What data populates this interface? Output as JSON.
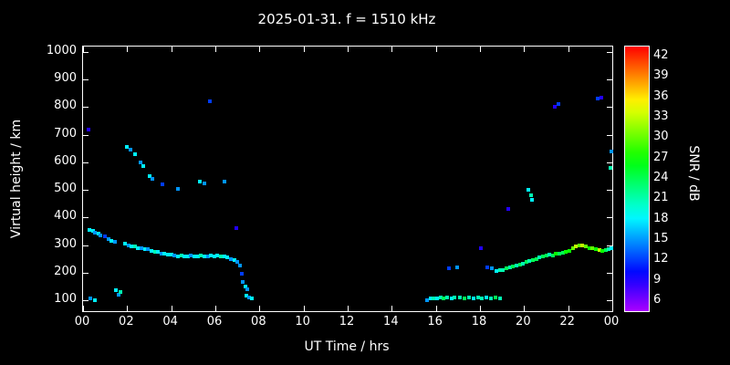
{
  "colors": {
    "background": "#000000",
    "foreground": "#ffffff"
  },
  "chart_data": {
    "type": "scatter",
    "title": "2025-01-31. f = 1510 kHz",
    "xlabel": "UT Time / hrs",
    "ylabel": "Virtual height / km",
    "colorbar_label": "SNR / dB",
    "xlim": [
      0,
      24
    ],
    "ylim": [
      60,
      1020
    ],
    "x_tick_labels": [
      "00",
      "02",
      "04",
      "06",
      "08",
      "10",
      "12",
      "14",
      "16",
      "18",
      "20",
      "22",
      "00"
    ],
    "x_tick_values": [
      0,
      2,
      4,
      6,
      8,
      10,
      12,
      14,
      16,
      18,
      20,
      22,
      24
    ],
    "y_tick_values": [
      100,
      200,
      300,
      400,
      500,
      600,
      700,
      800,
      900,
      1000
    ],
    "colorbar_tick_values": [
      42,
      39,
      36,
      33,
      30,
      27,
      24,
      21,
      18,
      15,
      12,
      9,
      6
    ],
    "colorbar_range": [
      4.5,
      43.5
    ],
    "grid": false,
    "legend": "colorbar-right",
    "points_format": "[ut_hours, virtual_height_km, snr_db]",
    "points": [
      [
        0.25,
        720,
        9
      ],
      [
        0.3,
        355,
        18
      ],
      [
        0.45,
        350,
        18
      ],
      [
        0.55,
        345,
        15
      ],
      [
        0.7,
        340,
        18
      ],
      [
        0.8,
        335,
        15
      ],
      [
        0.35,
        105,
        15
      ],
      [
        0.55,
        100,
        18
      ],
      [
        1.0,
        330,
        12
      ],
      [
        1.15,
        320,
        15
      ],
      [
        1.3,
        315,
        18
      ],
      [
        1.45,
        310,
        15
      ],
      [
        1.5,
        135,
        18
      ],
      [
        1.6,
        120,
        15
      ],
      [
        1.7,
        130,
        21
      ],
      [
        1.9,
        305,
        18
      ],
      [
        2.05,
        300,
        15
      ],
      [
        2.2,
        295,
        18
      ],
      [
        2.35,
        295,
        21
      ],
      [
        2.5,
        290,
        18
      ],
      [
        2.0,
        655,
        18
      ],
      [
        2.15,
        645,
        15
      ],
      [
        2.35,
        630,
        18
      ],
      [
        2.6,
        600,
        15
      ],
      [
        2.75,
        585,
        18
      ],
      [
        2.65,
        290,
        15
      ],
      [
        2.8,
        285,
        18
      ],
      [
        2.95,
        285,
        15
      ],
      [
        3.0,
        550,
        18
      ],
      [
        3.15,
        540,
        15
      ],
      [
        3.1,
        280,
        18
      ],
      [
        3.25,
        275,
        21
      ],
      [
        3.4,
        275,
        18
      ],
      [
        3.55,
        270,
        15
      ],
      [
        3.7,
        268,
        18
      ],
      [
        3.85,
        265,
        18
      ],
      [
        3.6,
        520,
        12
      ],
      [
        4.0,
        265,
        18
      ],
      [
        4.15,
        262,
        15
      ],
      [
        4.3,
        260,
        18
      ],
      [
        4.45,
        262,
        21
      ],
      [
        4.6,
        258,
        18
      ],
      [
        4.75,
        260,
        18
      ],
      [
        4.9,
        262,
        15
      ],
      [
        4.3,
        505,
        15
      ],
      [
        5.05,
        260,
        18
      ],
      [
        5.2,
        258,
        18
      ],
      [
        5.35,
        262,
        21
      ],
      [
        5.5,
        260,
        18
      ],
      [
        5.65,
        258,
        15
      ],
      [
        5.8,
        262,
        18
      ],
      [
        5.95,
        260,
        18
      ],
      [
        5.3,
        530,
        18
      ],
      [
        5.5,
        525,
        15
      ],
      [
        5.75,
        820,
        12
      ],
      [
        6.1,
        262,
        18
      ],
      [
        6.25,
        260,
        21
      ],
      [
        6.4,
        258,
        18
      ],
      [
        6.55,
        255,
        18
      ],
      [
        6.4,
        530,
        15
      ],
      [
        6.7,
        250,
        15
      ],
      [
        6.85,
        245,
        18
      ],
      [
        7.0,
        240,
        15
      ],
      [
        6.95,
        360,
        9
      ],
      [
        7.1,
        225,
        15
      ],
      [
        7.2,
        195,
        12
      ],
      [
        7.25,
        165,
        15
      ],
      [
        7.35,
        150,
        18
      ],
      [
        7.45,
        140,
        15
      ],
      [
        7.4,
        115,
        18
      ],
      [
        7.55,
        110,
        15
      ],
      [
        7.65,
        108,
        18
      ],
      [
        15.6,
        100,
        15
      ],
      [
        15.75,
        105,
        18
      ],
      [
        15.9,
        108,
        21
      ],
      [
        16.05,
        105,
        18
      ],
      [
        16.2,
        110,
        21
      ],
      [
        16.35,
        108,
        24
      ],
      [
        16.5,
        110,
        21
      ],
      [
        16.7,
        108,
        18
      ],
      [
        16.85,
        110,
        21
      ],
      [
        16.6,
        215,
        12
      ],
      [
        16.95,
        218,
        15
      ],
      [
        17.1,
        110,
        21
      ],
      [
        17.3,
        108,
        24
      ],
      [
        17.5,
        110,
        21
      ],
      [
        17.7,
        108,
        18
      ],
      [
        17.9,
        110,
        21
      ],
      [
        18.1,
        108,
        21
      ],
      [
        18.3,
        110,
        18
      ],
      [
        18.5,
        108,
        21
      ],
      [
        18.7,
        110,
        24
      ],
      [
        18.9,
        108,
        21
      ],
      [
        18.05,
        290,
        9
      ],
      [
        18.35,
        220,
        12
      ],
      [
        18.55,
        215,
        15
      ],
      [
        18.75,
        205,
        18
      ],
      [
        18.9,
        208,
        21
      ],
      [
        19.05,
        210,
        21
      ],
      [
        19.2,
        215,
        24
      ],
      [
        19.35,
        218,
        21
      ],
      [
        19.5,
        222,
        24
      ],
      [
        19.65,
        225,
        21
      ],
      [
        19.8,
        230,
        24
      ],
      [
        19.95,
        232,
        21
      ],
      [
        19.3,
        430,
        9
      ],
      [
        20.1,
        238,
        24
      ],
      [
        20.25,
        242,
        21
      ],
      [
        20.4,
        246,
        24
      ],
      [
        20.2,
        500,
        18
      ],
      [
        20.3,
        480,
        21
      ],
      [
        20.35,
        465,
        18
      ],
      [
        20.55,
        250,
        24
      ],
      [
        20.7,
        255,
        21
      ],
      [
        20.85,
        258,
        24
      ],
      [
        21.0,
        262,
        24
      ],
      [
        21.15,
        266,
        21
      ],
      [
        21.3,
        263,
        24
      ],
      [
        21.45,
        268,
        27
      ],
      [
        21.6,
        270,
        24
      ],
      [
        21.75,
        272,
        24
      ],
      [
        21.9,
        275,
        27
      ],
      [
        21.4,
        800,
        9
      ],
      [
        21.55,
        810,
        12
      ],
      [
        22.05,
        280,
        27
      ],
      [
        22.2,
        288,
        30
      ],
      [
        22.35,
        295,
        33
      ],
      [
        22.5,
        300,
        30
      ],
      [
        22.65,
        298,
        33
      ],
      [
        22.8,
        294,
        30
      ],
      [
        22.95,
        290,
        27
      ],
      [
        23.1,
        288,
        30
      ],
      [
        23.25,
        285,
        27
      ],
      [
        23.35,
        830,
        12
      ],
      [
        23.5,
        835,
        9
      ],
      [
        23.4,
        282,
        33
      ],
      [
        23.55,
        280,
        27
      ],
      [
        23.7,
        282,
        24
      ],
      [
        23.85,
        286,
        21
      ],
      [
        23.95,
        290,
        18
      ],
      [
        23.9,
        580,
        21
      ],
      [
        23.95,
        640,
        15
      ]
    ]
  }
}
